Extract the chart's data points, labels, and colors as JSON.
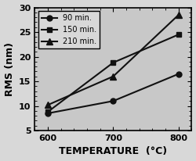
{
  "title": "",
  "xlabel": "TEMPERATURE  (°C)",
  "ylabel": "RMS (nm)",
  "xlim": [
    580,
    820
  ],
  "ylim": [
    5,
    30
  ],
  "xticks": [
    600,
    700,
    800
  ],
  "yticks": [
    5,
    10,
    15,
    20,
    25,
    30
  ],
  "series": [
    {
      "label": "90 min.",
      "x": [
        600,
        700,
        800
      ],
      "y": [
        8.5,
        11.0,
        16.5
      ],
      "marker": "o",
      "color": "#111111",
      "linestyle": "-",
      "markersize": 5
    },
    {
      "label": "150 min.",
      "x": [
        600,
        700,
        800
      ],
      "y": [
        8.8,
        18.8,
        24.5
      ],
      "marker": "s",
      "color": "#111111",
      "linestyle": "-",
      "markersize": 5
    },
    {
      "label": "210 min.",
      "x": [
        600,
        700,
        800
      ],
      "y": [
        10.2,
        16.0,
        28.5
      ],
      "marker": "^",
      "color": "#111111",
      "linestyle": "-",
      "markersize": 6
    }
  ],
  "legend_fontsize": 7,
  "axis_label_fontsize": 9,
  "tick_fontsize": 8,
  "background_color": "#d8d8d8",
  "plot_bg_color": "#c8c8c8",
  "legend_loc": "upper left"
}
